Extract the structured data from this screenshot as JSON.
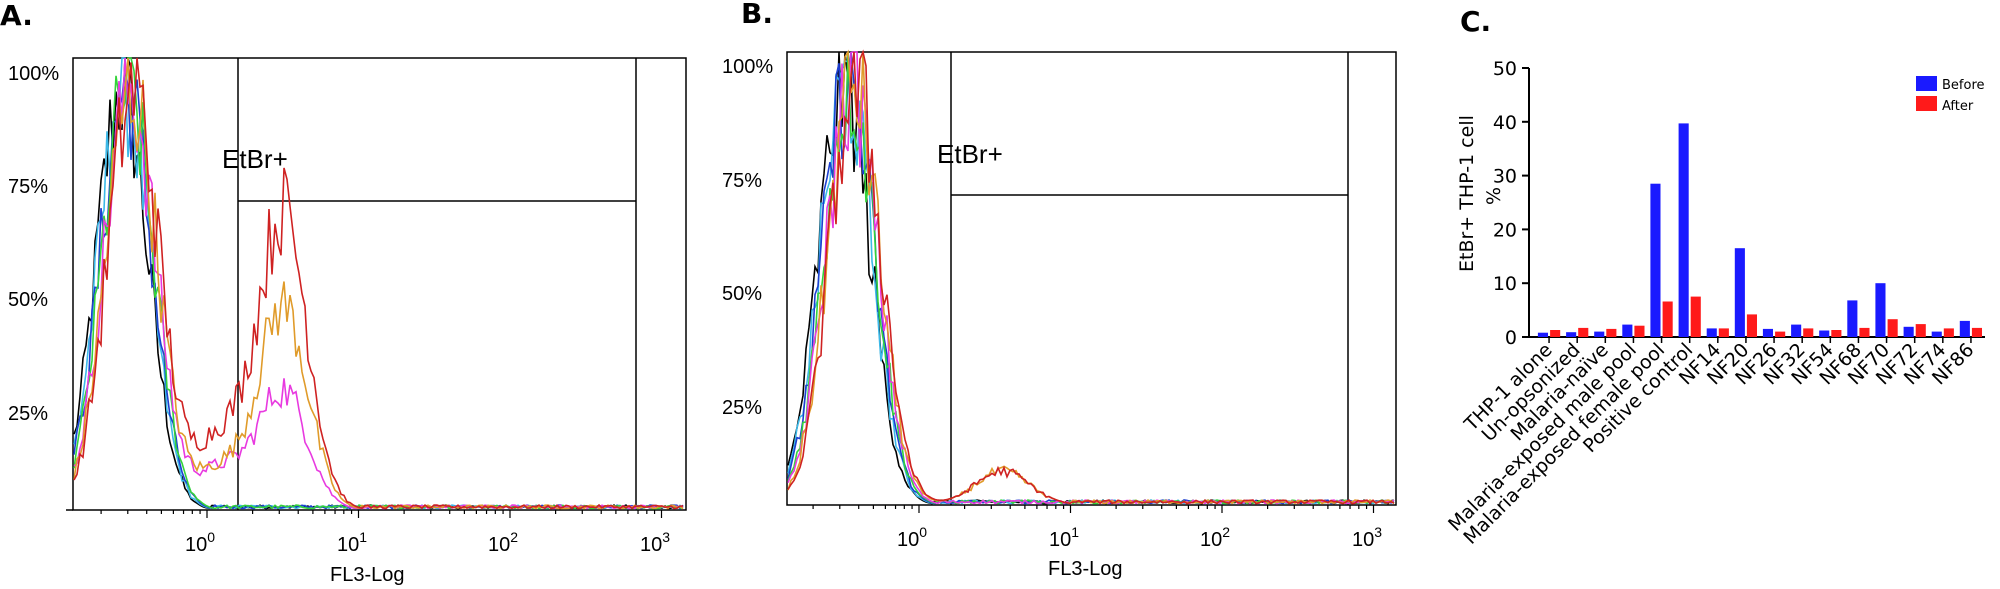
{
  "panels": {
    "a_label": "A.",
    "b_label": "B.",
    "c_label": "C."
  },
  "chart_data": [
    {
      "type": "line",
      "panel": "A",
      "xlabel": "FL3-Log",
      "x_scale": "log",
      "x_tick_labels": [
        {
          "base": "10",
          "exp": "0"
        },
        {
          "base": "10",
          "exp": "1"
        },
        {
          "base": "10",
          "exp": "2"
        },
        {
          "base": "10",
          "exp": "3"
        }
      ],
      "y_tick_labels": [
        "100%",
        "75%",
        "50%",
        "25%"
      ],
      "ylim": [
        0,
        100
      ],
      "gate_label": "EtBr+",
      "series_colors": [
        "#000000",
        "#3cb9e8",
        "#1d3fd0",
        "#34d33a",
        "#e83ae0",
        "#e09b2a",
        "#cf2222"
      ],
      "peak_x": 0.3,
      "second_peak_x": 3.2,
      "second_peak_height_pct": 70
    },
    {
      "type": "line",
      "panel": "B",
      "xlabel": "FL3-Log",
      "x_scale": "log",
      "x_tick_labels": [
        {
          "base": "10",
          "exp": "0"
        },
        {
          "base": "10",
          "exp": "1"
        },
        {
          "base": "10",
          "exp": "2"
        },
        {
          "base": "10",
          "exp": "3"
        }
      ],
      "y_tick_labels": [
        "100%",
        "75%",
        "50%",
        "25%"
      ],
      "ylim": [
        0,
        100
      ],
      "gate_label": "EtBr+",
      "series_colors": [
        "#000000",
        "#3cb9e8",
        "#1d3fd0",
        "#34d33a",
        "#e83ae0",
        "#e09b2a",
        "#cf2222"
      ],
      "peak_x": 0.35
    },
    {
      "type": "bar",
      "panel": "C",
      "ylabel": "EtBr+ THP-1 cell %",
      "ylabel_lines": [
        "EtBr+ THP-1 cell",
        "%"
      ],
      "ylim": [
        0,
        50
      ],
      "y_ticks": [
        "0",
        "10",
        "20",
        "30",
        "40",
        "50"
      ],
      "categories": [
        "THP-1 alone",
        "Un-opsonized",
        "Malaria-naïve",
        "Malaria-exposed male pool",
        "Malaria-exposed female pool",
        "Positive control",
        "NF14",
        "NF20",
        "NF26",
        "NF32",
        "NF54",
        "NF68",
        "NF70",
        "NF72",
        "NF74",
        "NF86"
      ],
      "series": [
        {
          "name": "Before",
          "color": "#1a1aff",
          "values": [
            0.8,
            0.9,
            1.0,
            2.3,
            28.5,
            39.7,
            1.6,
            16.5,
            1.5,
            2.3,
            1.2,
            6.8,
            10.0,
            1.9,
            1.0,
            3.0
          ]
        },
        {
          "name": "After",
          "color": "#ff1a1a",
          "values": [
            1.3,
            1.7,
            1.5,
            2.1,
            6.6,
            7.5,
            1.6,
            4.2,
            1.0,
            1.6,
            1.3,
            1.7,
            3.3,
            2.4,
            1.6,
            1.7
          ]
        }
      ],
      "legend_position": "top-right"
    }
  ]
}
